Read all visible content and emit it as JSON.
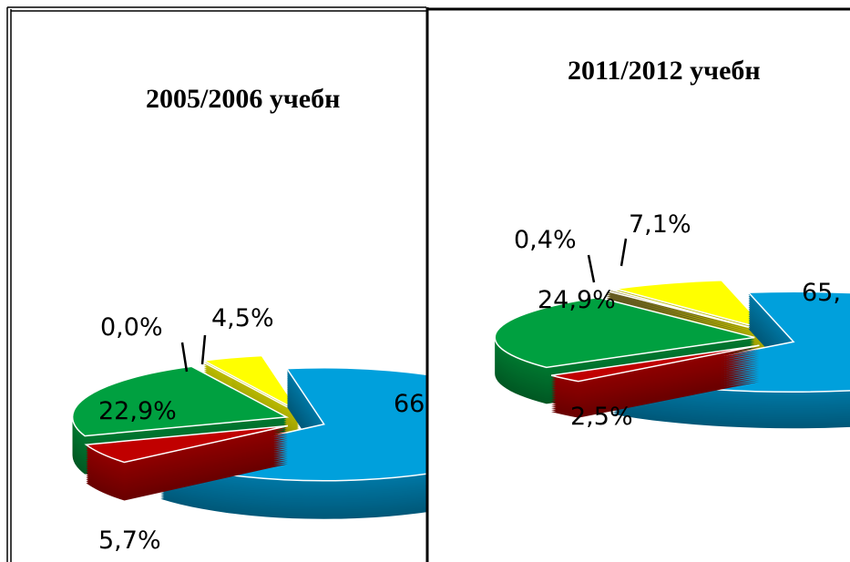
{
  "chart_data": [
    {
      "type": "pie",
      "title": "2005/2006 учебн",
      "values": [
        66,
        5.7,
        22.9,
        0.0,
        4.5
      ],
      "value_labels": [
        "66",
        "5,7%",
        "22,9%",
        "0,0%",
        "4,5%"
      ],
      "colors": [
        "#00a0dc",
        "#c00000",
        "#00a040",
        "#8b7d2a",
        "#ffff00"
      ]
    },
    {
      "type": "pie",
      "title": "2011/2012 учебн",
      "values": [
        65,
        2.5,
        24.9,
        0.4,
        7.1
      ],
      "value_labels": [
        "65,",
        "2,5%",
        "24,9%",
        "0,4%",
        "7,1%"
      ],
      "colors": [
        "#00a0dc",
        "#c00000",
        "#00a040",
        "#8b7d2a",
        "#ffff00"
      ]
    }
  ]
}
